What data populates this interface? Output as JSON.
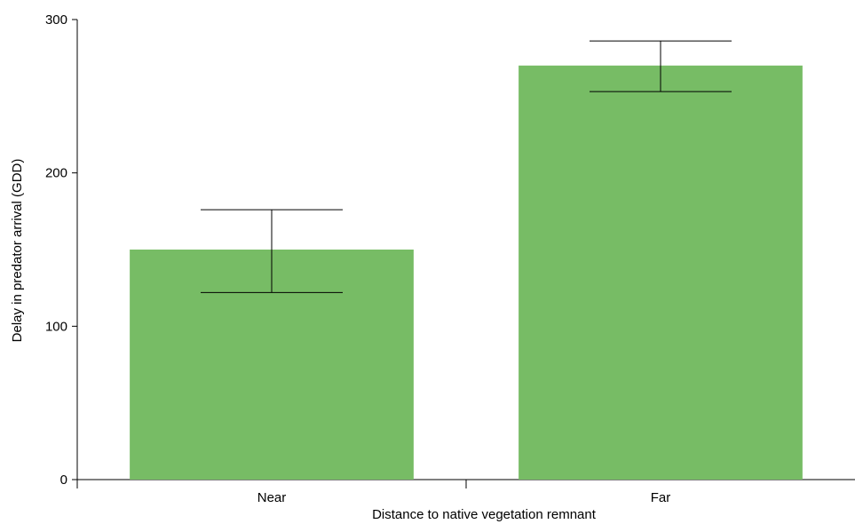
{
  "chart_data": {
    "type": "bar",
    "title": "",
    "xlabel": "Distance to native vegetation remnant",
    "ylabel": "Delay in predator arrival (GDD)",
    "categories": [
      "Near",
      "Far"
    ],
    "values": [
      150,
      270
    ],
    "error_bars": [
      {
        "low": 122,
        "high": 176
      },
      {
        "low": 253,
        "high": 286
      }
    ],
    "ylim": [
      0,
      300
    ],
    "yticks": [
      0,
      100,
      200,
      300
    ],
    "bar_color": "#77bc65",
    "grid": false,
    "legend": "none"
  }
}
